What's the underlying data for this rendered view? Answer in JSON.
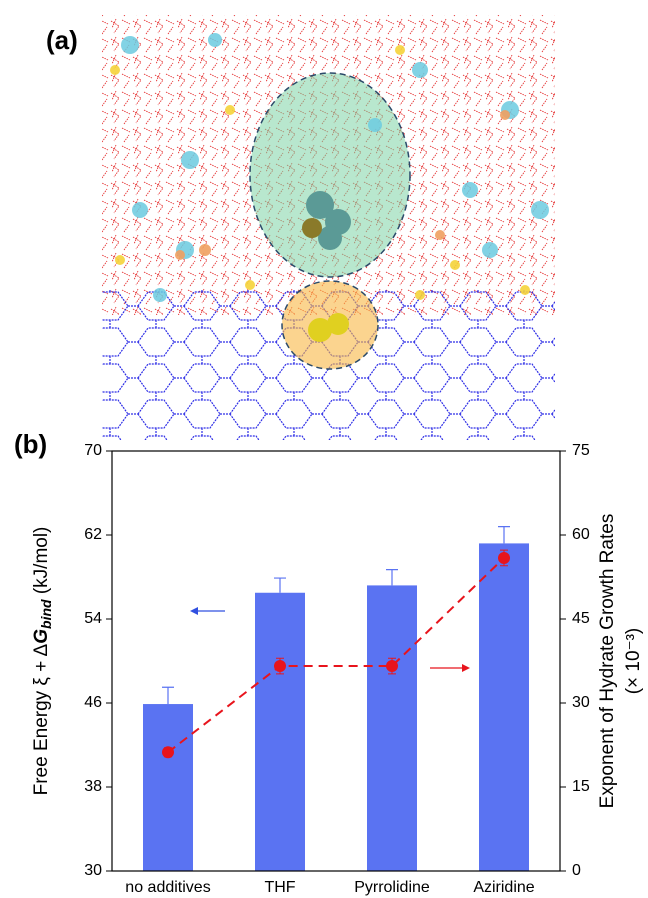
{
  "panel_labels": [
    "(a)",
    "(b)"
  ],
  "chart_data": {
    "type": "bar",
    "categories": [
      "no additives",
      "THF",
      "Pyrrolidine",
      "Aziridine"
    ],
    "ylabel": [
      "Free Energy ξ + Δ",
      "G",
      "bind",
      " (kJ/mol)"
    ],
    "y2label": [
      "Exponent of Hydrate Growth Rates",
      "(× 10⁻³)"
    ],
    "ylim": [
      30,
      70
    ],
    "yticks": [
      30,
      38,
      46,
      54,
      62,
      70
    ],
    "y2lim": [
      0,
      75
    ],
    "y2ticks": [
      0,
      15,
      30,
      45,
      60,
      75
    ],
    "series": [
      {
        "type": "bar",
        "color": "#5a73f2",
        "values": [
          45.9,
          56.5,
          57.2,
          61.2
        ],
        "errors": [
          1.6,
          1.4,
          1.5,
          1.6
        ]
      },
      {
        "type": "line",
        "axis": "y2",
        "color": "#e8141c",
        "values": [
          21.2,
          36.6,
          36.6,
          55.9
        ],
        "errors": [
          0.8,
          1.4,
          1.4,
          1.4
        ]
      }
    ]
  }
}
